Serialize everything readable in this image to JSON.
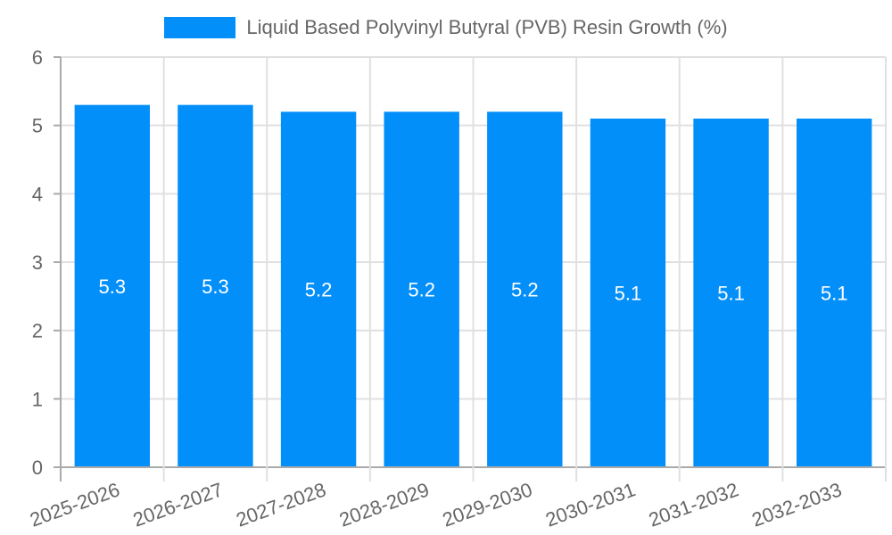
{
  "chart_data": {
    "type": "bar",
    "title": "",
    "legend": [
      "Liquid Based Polyvinyl Butyral (PVB) Resin Growth (%)"
    ],
    "legend_position": "top",
    "categories": [
      "2025-2026",
      "2026-2027",
      "2027-2028",
      "2028-2029",
      "2029-2030",
      "2030-2031",
      "2031-2032",
      "2032-2033"
    ],
    "series": [
      {
        "name": "Liquid Based Polyvinyl Butyral (PVB) Resin Growth (%)",
        "values": [
          5.3,
          5.3,
          5.2,
          5.2,
          5.2,
          5.1,
          5.1,
          5.1
        ],
        "color": "#038ffa"
      }
    ],
    "xlabel": "",
    "ylabel": "",
    "ylim": [
      0,
      6
    ],
    "yticks": [
      0,
      1,
      2,
      3,
      4,
      5,
      6
    ],
    "grid": true,
    "data_labels": true
  },
  "legend": {
    "label": "Liquid Based Polyvinyl Butyral (PVB) Resin Growth (%)"
  }
}
